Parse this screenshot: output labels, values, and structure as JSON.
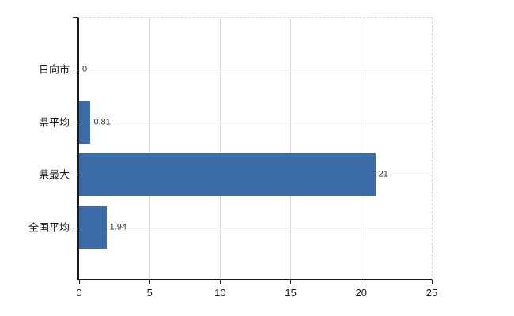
{
  "chart_data": {
    "type": "bar",
    "orientation": "horizontal",
    "title": "",
    "xlabel": "",
    "ylabel": "",
    "categories": [
      "日向市",
      "県平均",
      "県最大",
      "全国平均"
    ],
    "values": [
      0,
      0.81,
      21,
      1.94
    ],
    "value_labels": [
      "0",
      "0.81",
      "21",
      "1.94"
    ],
    "xlim": [
      0,
      25
    ],
    "xticks": [
      0,
      5,
      10,
      15,
      20,
      25
    ],
    "xtick_labels": [
      "0",
      "5",
      "10",
      "15",
      "20",
      "25"
    ],
    "grid": true,
    "legend": false,
    "colors": {
      "bar": "#3c6ca7",
      "grid": "#d9dcd6",
      "axis": "#1a1a1a",
      "dashed_border": "#d9d9d9",
      "text": "#1a1a1a",
      "value_text": "#333333",
      "background": "#ffffff"
    }
  }
}
